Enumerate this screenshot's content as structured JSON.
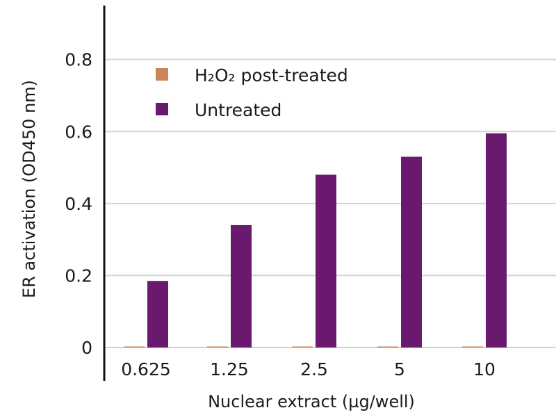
{
  "chart_data": {
    "type": "bar",
    "title": "",
    "xlabel": "Nuclear extract (µg/well)",
    "ylabel": "ER activation (OD450 nm)",
    "categories": [
      "0.625",
      "1.25",
      "2.5",
      "5",
      "10"
    ],
    "series": [
      {
        "name": "H₂O₂ post-treated",
        "color": "#c8865a",
        "values": [
          0.002,
          0.002,
          0.002,
          0.002,
          0.002
        ]
      },
      {
        "name": "Untreated",
        "color": "#6a1a6e",
        "values": [
          0.185,
          0.34,
          0.48,
          0.53,
          0.595
        ]
      }
    ],
    "ylim": [
      0,
      0.95
    ],
    "yticks": [
      "0",
      "0.2",
      "0.4",
      "0.6",
      "0.8"
    ],
    "grid": true,
    "legend_position": "top-left"
  }
}
